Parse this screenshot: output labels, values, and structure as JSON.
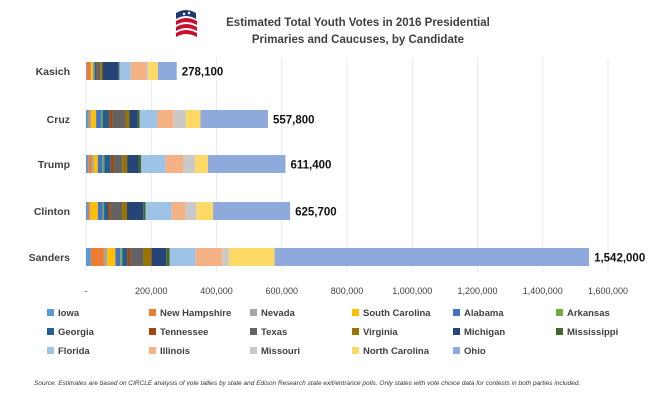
{
  "chart_data": {
    "type": "bar",
    "orientation": "horizontal",
    "stacked": true,
    "title_line1": "Estimated Total Youth Votes in 2016 Presidential",
    "title_line2": "Primaries and Caucuses, by Candidate",
    "categories": [
      "Kasich",
      "Cruz",
      "Trump",
      "Clinton",
      "Sanders"
    ],
    "totals": [
      "278,100",
      "557,800",
      "611,400",
      "625,700",
      "1,542,000"
    ],
    "xlim": [
      0,
      1600000
    ],
    "xticks": [
      0,
      200000,
      400000,
      600000,
      800000,
      1000000,
      1200000,
      1400000,
      1600000
    ],
    "xtick_labels": [
      "-",
      "200,000",
      "400,000",
      "600,000",
      "800,000",
      "1,000,000",
      "1,200,000",
      "1,400,000",
      "1,600,000"
    ],
    "legend_position": "bottom",
    "series": [
      {
        "name": "Iowa",
        "color": "#5B9BD5",
        "values": [
          2000,
          8000,
          7000,
          6000,
          15000
        ]
      },
      {
        "name": "New Hampshire",
        "color": "#ED7D31",
        "values": [
          12000,
          4000,
          10000,
          5000,
          40000
        ]
      },
      {
        "name": "Nevada",
        "color": "#A5A5A5",
        "values": [
          1500,
          4000,
          7000,
          3500,
          10000
        ]
      },
      {
        "name": "South Carolina",
        "color": "#FFC000",
        "values": [
          7000,
          15000,
          12000,
          22000,
          25000
        ]
      },
      {
        "name": "Alabama",
        "color": "#4472C4",
        "values": [
          3000,
          15000,
          15000,
          15000,
          15000
        ]
      },
      {
        "name": "Arkansas",
        "color": "#70AD47",
        "values": [
          1000,
          5000,
          5000,
          4000,
          6000
        ]
      },
      {
        "name": "Georgia",
        "color": "#255E91",
        "values": [
          6000,
          20000,
          20000,
          12000,
          15000
        ]
      },
      {
        "name": "Tennessee",
        "color": "#9E480E",
        "values": [
          3000,
          10000,
          10000,
          8000,
          10000
        ]
      },
      {
        "name": "Texas",
        "color": "#636363",
        "values": [
          8000,
          40000,
          25000,
          35000,
          40000
        ]
      },
      {
        "name": "Virginia",
        "color": "#997300",
        "values": [
          7000,
          12000,
          15000,
          15000,
          25000
        ]
      },
      {
        "name": "Michigan",
        "color": "#264478",
        "values": [
          50000,
          25000,
          35000,
          50000,
          45000
        ]
      },
      {
        "name": "Mississippi",
        "color": "#43682B",
        "values": [
          2000,
          6000,
          8000,
          7000,
          10000
        ]
      },
      {
        "name": "Florida",
        "color": "#9DC3E6",
        "values": [
          35000,
          55000,
          75000,
          80000,
          80000
        ]
      },
      {
        "name": "Illinois",
        "color": "#F4B183",
        "values": [
          48000,
          50000,
          55000,
          42000,
          82000
        ]
      },
      {
        "name": "Missouri",
        "color": "#C9C9C9",
        "values": [
          5000,
          37000,
          35000,
          35000,
          20000
        ]
      },
      {
        "name": "North Carolina",
        "color": "#FFD966",
        "values": [
          30000,
          45000,
          40000,
          50000,
          140000
        ]
      },
      {
        "name": "Ohio",
        "color": "#8EA9DB",
        "values": [
          57600,
          206800,
          237400,
          236200,
          964000
        ]
      }
    ]
  },
  "source_note": "Source:  Estimates are based on CIRCLE analysis of vote tallies by state and Edison Research state exit/entrance polls.  Only states with vote choice data for contests in both parties included."
}
